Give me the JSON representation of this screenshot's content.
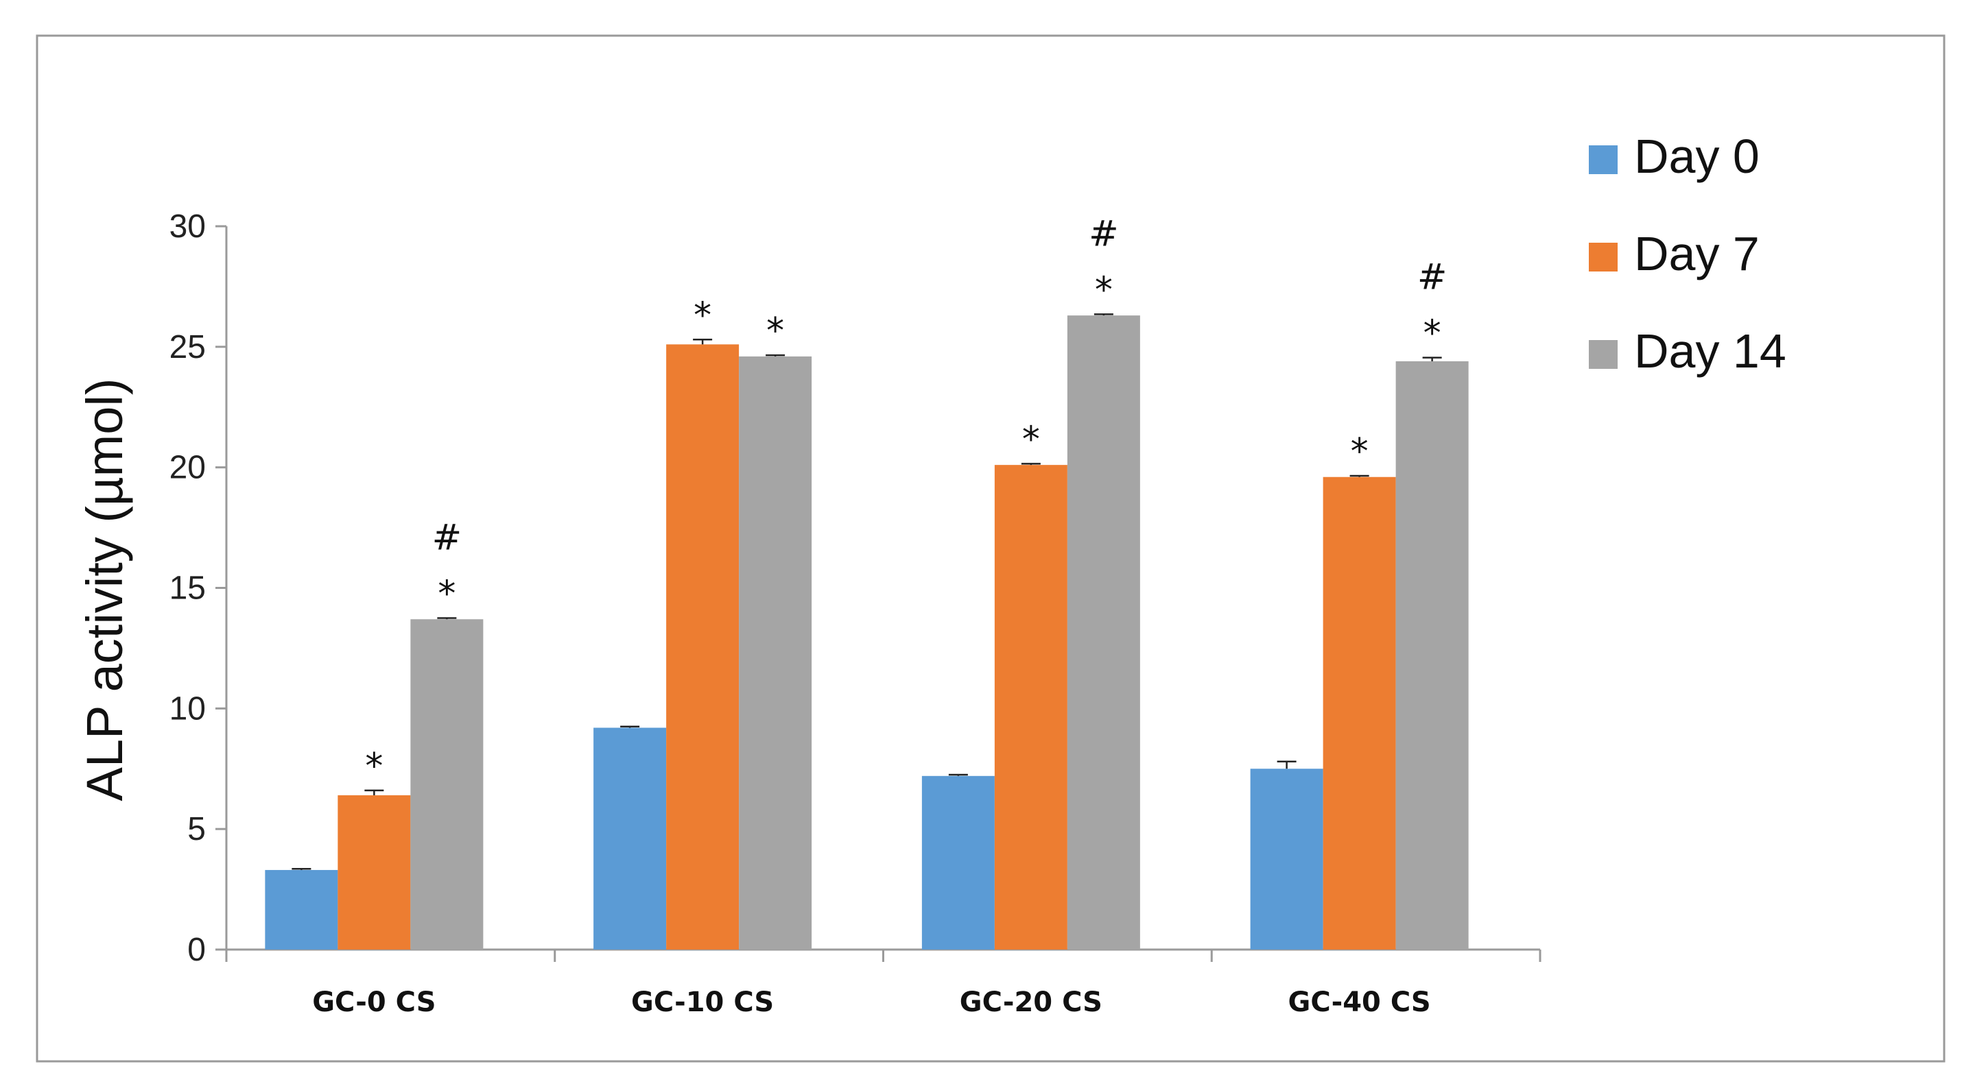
{
  "chart_data": {
    "type": "bar",
    "ylabel": "ALP activity (µmol)",
    "xlabel": "",
    "ylim": [
      0,
      30
    ],
    "yticks": [
      0,
      5,
      10,
      15,
      20,
      25,
      30
    ],
    "grid": false,
    "legend_position": "top-right",
    "categories": [
      "GC-0 CS",
      "GC-10 CS",
      "GC-20 CS",
      "GC-40 CS"
    ],
    "series": [
      {
        "name": "Day 0",
        "color": "#5b9bd5",
        "values": [
          3.3,
          9.2,
          7.2,
          7.5
        ],
        "errors": [
          0.05,
          0.05,
          0.05,
          0.3
        ],
        "annotations": [
          [],
          [],
          [],
          []
        ]
      },
      {
        "name": "Day 7",
        "color": "#ed7d31",
        "values": [
          6.4,
          25.1,
          20.1,
          19.6
        ],
        "errors": [
          0.2,
          0.2,
          0.05,
          0.05
        ],
        "annotations": [
          [
            "*"
          ],
          [
            "*"
          ],
          [
            "*"
          ],
          [
            "*"
          ]
        ]
      },
      {
        "name": "Day 14",
        "color": "#a5a5a5",
        "values": [
          13.7,
          24.6,
          26.3,
          24.4
        ],
        "errors": [
          0.05,
          0.05,
          0.05,
          0.15
        ],
        "annotations": [
          [
            "*",
            "#"
          ],
          [
            "*"
          ],
          [
            "*",
            "#"
          ],
          [
            "*",
            "#"
          ]
        ]
      }
    ]
  }
}
